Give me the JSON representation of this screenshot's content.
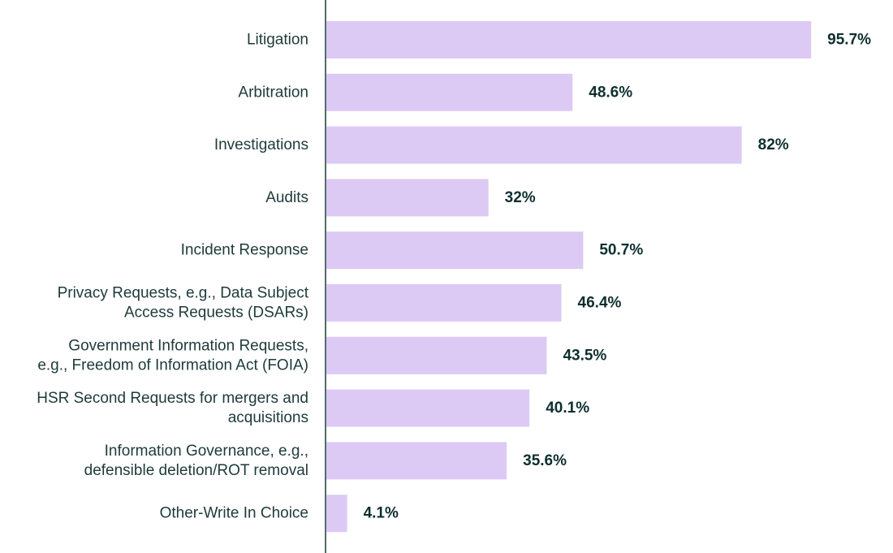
{
  "chart_data": {
    "type": "bar",
    "orientation": "horizontal",
    "title": "",
    "xlabel": "",
    "ylabel": "",
    "xlim": [
      0,
      100
    ],
    "grid": false,
    "value_suffix": "%",
    "bar_color": "#dccaf5",
    "axis_color": "#1e3a3a",
    "label_color": "#1e3a3a",
    "value_color": "#0f2f2f",
    "categories": [
      [
        "Litigation"
      ],
      [
        "Arbitration"
      ],
      [
        "Investigations"
      ],
      [
        "Audits"
      ],
      [
        "Incident Response"
      ],
      [
        "Privacy Requests, e.g., Data Subject",
        "Access Requests (DSARs)"
      ],
      [
        "Government Information Requests,",
        "e.g., Freedom of Information Act (FOIA)"
      ],
      [
        "HSR Second Requests for mergers and",
        "acquisitions"
      ],
      [
        "Information Governance, e.g.,",
        "defensible deletion/ROT removal"
      ],
      [
        "Other-Write In Choice"
      ]
    ],
    "values": [
      95.7,
      48.6,
      82,
      32,
      50.7,
      46.4,
      43.5,
      40.1,
      35.6,
      4.1
    ],
    "value_labels": [
      "95.7%",
      "48.6%",
      "82%",
      "32%",
      "50.7%",
      "46.4%",
      "43.5%",
      "40.1%",
      "35.6%",
      "4.1%"
    ]
  }
}
